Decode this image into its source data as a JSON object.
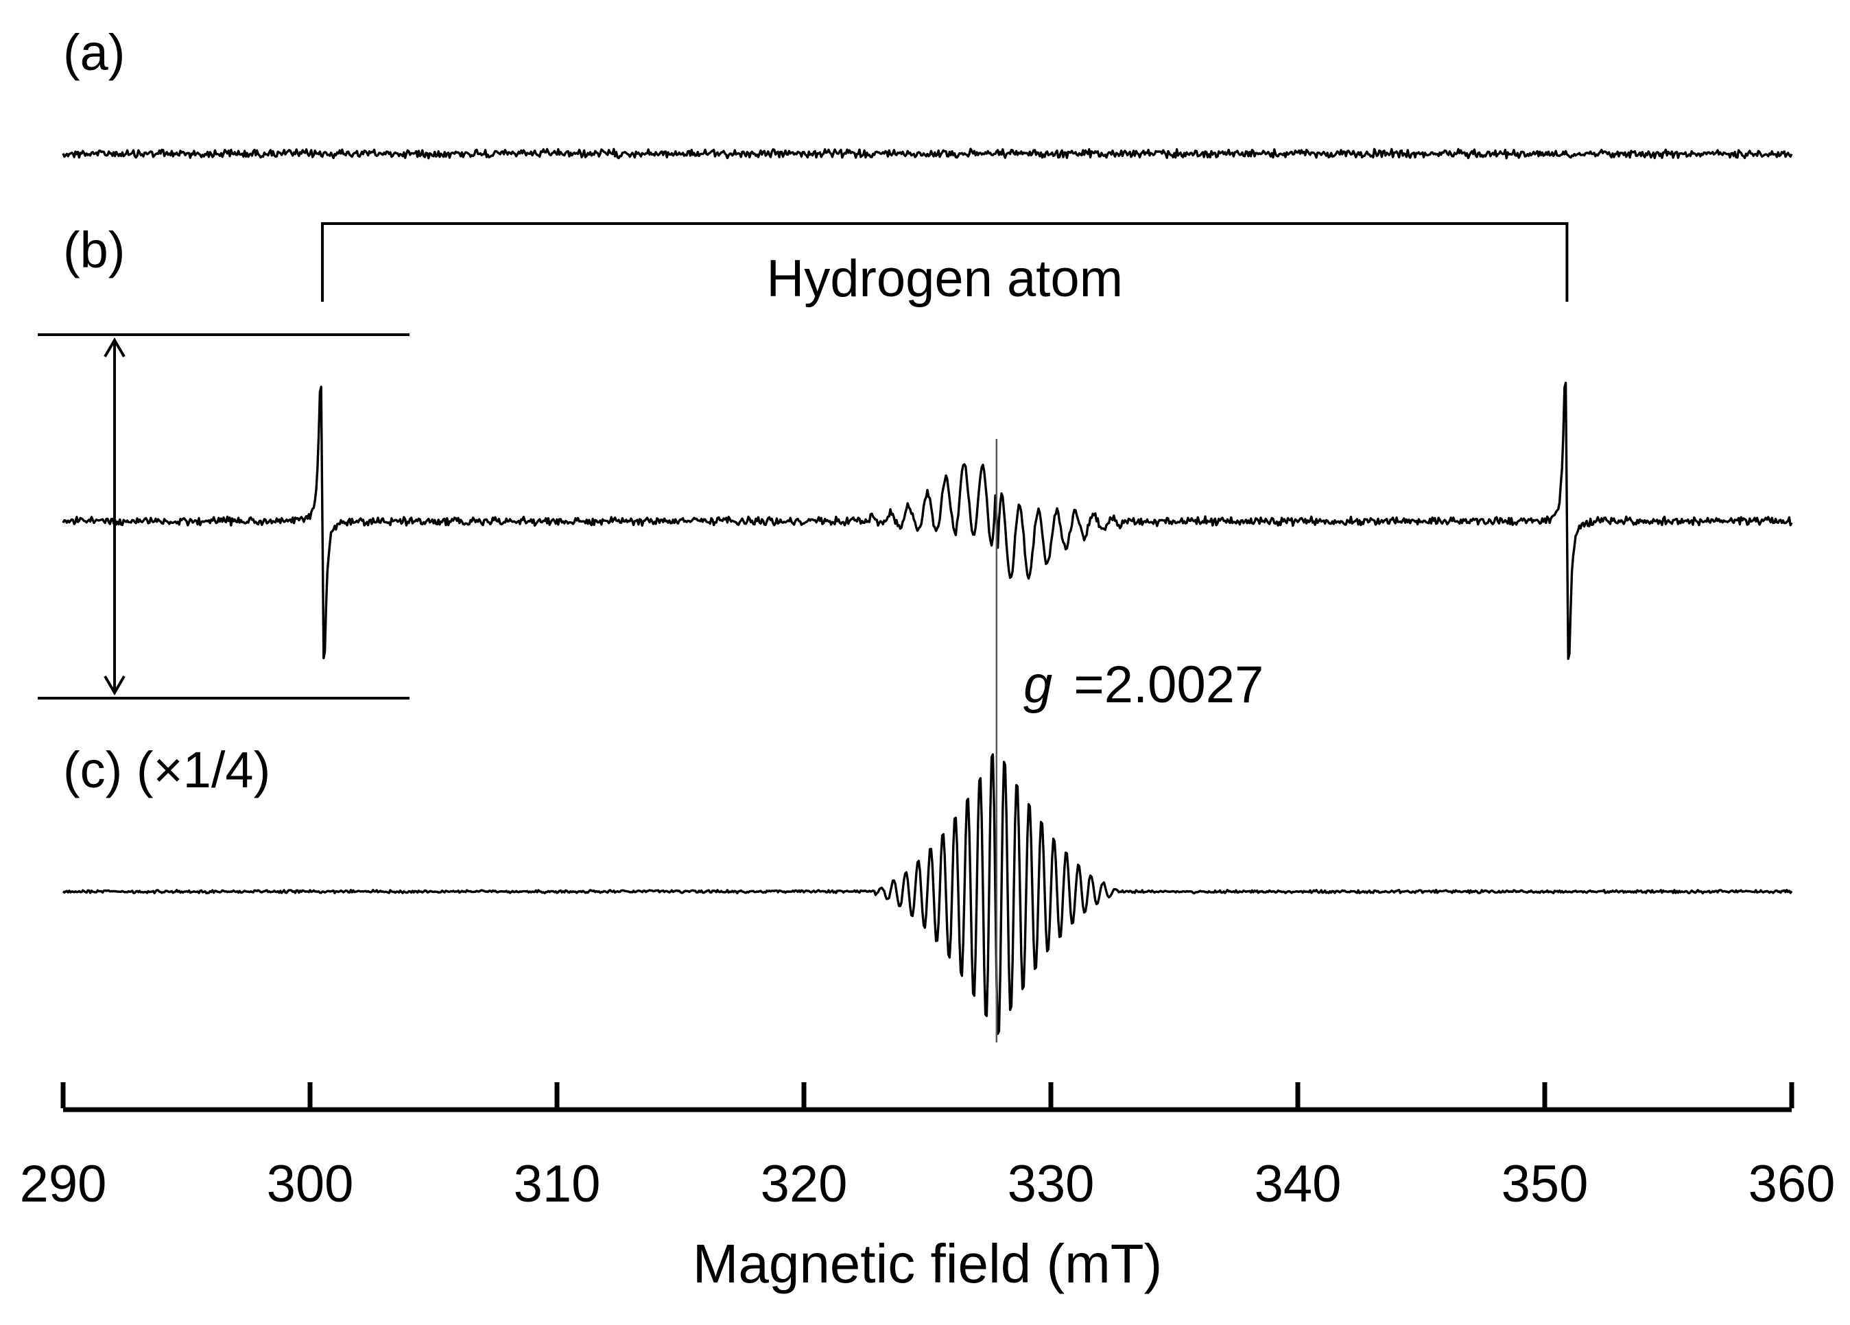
{
  "chart_data": {
    "type": "line",
    "title": "",
    "xlabel": "Magnetic field (mT)",
    "ylabel": "",
    "xlim": [
      290,
      360
    ],
    "xticks": [
      290,
      300,
      310,
      320,
      330,
      340,
      350,
      360
    ],
    "tick_labels": [
      "290",
      "300",
      "310",
      "320",
      "330",
      "340",
      "350",
      "360"
    ],
    "grid": false,
    "series": [
      {
        "name": "(a)",
        "label": "(a)",
        "description": "flat noisy baseline, no signal",
        "peaks": []
      },
      {
        "name": "(b)",
        "label": "(b)",
        "peaks": [
          {
            "center_mT": 300.5,
            "kind": "sharp derivative line",
            "amplitude": 1.0
          },
          {
            "center_mT": 327.8,
            "kind": "broad multiplet with hyperfine structure",
            "amplitude": 0.52
          },
          {
            "center_mT": 350.9,
            "kind": "sharp derivative line",
            "amplitude": 1.0
          }
        ]
      },
      {
        "name": "(c)",
        "label": "(c) (×1/4)",
        "scale_factor": "×1/4",
        "peaks": [
          {
            "center_mT": 327.8,
            "kind": "hyperfine multiplet",
            "span_mT": [
              323.0,
              332.7
            ],
            "line_spacing_mT": 0.5
          }
        ]
      }
    ],
    "annotations": {
      "hydrogen_bracket": {
        "label": "Hydrogen atom",
        "from_mT": 300.5,
        "to_mT": 350.9
      },
      "g_value": {
        "symbol": "g",
        "text": "=2.0027",
        "field_mT": 327.8
      }
    }
  }
}
